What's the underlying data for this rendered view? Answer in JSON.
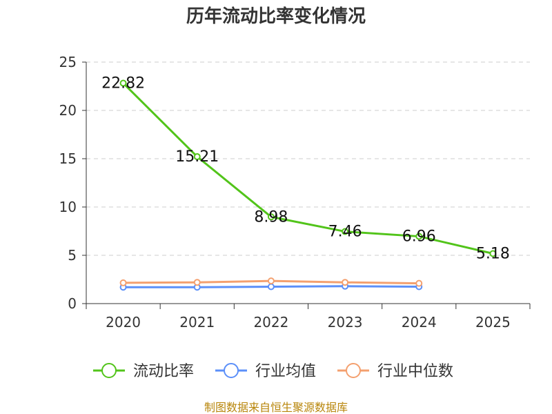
{
  "chart_data": {
    "type": "line",
    "title": "历年流动比率变化情况",
    "categories": [
      "2020",
      "2021",
      "2022",
      "2023",
      "2024",
      "2025"
    ],
    "ylim": [
      0,
      25
    ],
    "yticks": [
      0,
      5,
      10,
      15,
      20,
      25
    ],
    "grid": true,
    "legend_position": "bottom",
    "series": [
      {
        "name": "流动比率",
        "color": "#52c41a",
        "values": [
          22.82,
          15.21,
          8.98,
          7.46,
          6.96,
          5.18
        ],
        "show_labels": true
      },
      {
        "name": "行业均值",
        "color": "#5b8ff9",
        "values": [
          1.7,
          1.7,
          1.75,
          1.8,
          1.75,
          null
        ],
        "show_labels": false
      },
      {
        "name": "行业中位数",
        "color": "#f4a06f",
        "values": [
          2.15,
          2.2,
          2.35,
          2.2,
          2.1,
          null
        ],
        "show_labels": false
      }
    ]
  },
  "source": "制图数据来自恒生聚源数据库"
}
